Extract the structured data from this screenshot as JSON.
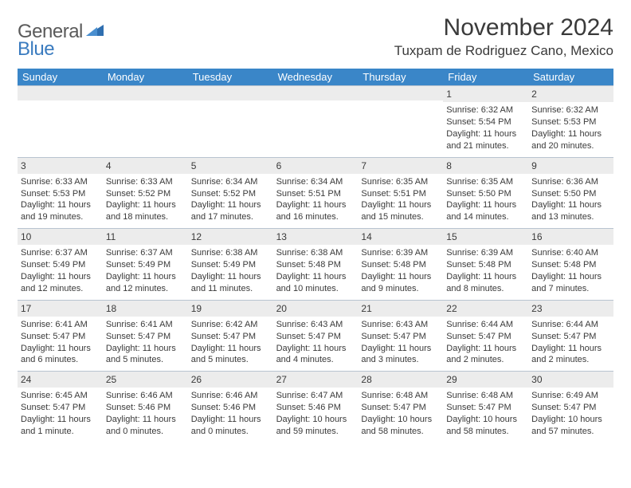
{
  "logo": {
    "text1": "General",
    "text2": "Blue"
  },
  "title": "November 2024",
  "location": "Tuxpam de Rodriguez Cano, Mexico",
  "colors": {
    "header_bar": "#3a86c8",
    "day_header_bg": "#ececec",
    "border": "#b8c4d0",
    "text": "#3a3a3a",
    "logo_gray": "#5a5a5a",
    "logo_blue": "#3a7bbf"
  },
  "weekdays": [
    "Sunday",
    "Monday",
    "Tuesday",
    "Wednesday",
    "Thursday",
    "Friday",
    "Saturday"
  ],
  "weeks": [
    [
      {
        "n": "",
        "sr": "",
        "ss": "",
        "dl": ""
      },
      {
        "n": "",
        "sr": "",
        "ss": "",
        "dl": ""
      },
      {
        "n": "",
        "sr": "",
        "ss": "",
        "dl": ""
      },
      {
        "n": "",
        "sr": "",
        "ss": "",
        "dl": ""
      },
      {
        "n": "",
        "sr": "",
        "ss": "",
        "dl": ""
      },
      {
        "n": "1",
        "sr": "Sunrise: 6:32 AM",
        "ss": "Sunset: 5:54 PM",
        "dl": "Daylight: 11 hours and 21 minutes."
      },
      {
        "n": "2",
        "sr": "Sunrise: 6:32 AM",
        "ss": "Sunset: 5:53 PM",
        "dl": "Daylight: 11 hours and 20 minutes."
      }
    ],
    [
      {
        "n": "3",
        "sr": "Sunrise: 6:33 AM",
        "ss": "Sunset: 5:53 PM",
        "dl": "Daylight: 11 hours and 19 minutes."
      },
      {
        "n": "4",
        "sr": "Sunrise: 6:33 AM",
        "ss": "Sunset: 5:52 PM",
        "dl": "Daylight: 11 hours and 18 minutes."
      },
      {
        "n": "5",
        "sr": "Sunrise: 6:34 AM",
        "ss": "Sunset: 5:52 PM",
        "dl": "Daylight: 11 hours and 17 minutes."
      },
      {
        "n": "6",
        "sr": "Sunrise: 6:34 AM",
        "ss": "Sunset: 5:51 PM",
        "dl": "Daylight: 11 hours and 16 minutes."
      },
      {
        "n": "7",
        "sr": "Sunrise: 6:35 AM",
        "ss": "Sunset: 5:51 PM",
        "dl": "Daylight: 11 hours and 15 minutes."
      },
      {
        "n": "8",
        "sr": "Sunrise: 6:35 AM",
        "ss": "Sunset: 5:50 PM",
        "dl": "Daylight: 11 hours and 14 minutes."
      },
      {
        "n": "9",
        "sr": "Sunrise: 6:36 AM",
        "ss": "Sunset: 5:50 PM",
        "dl": "Daylight: 11 hours and 13 minutes."
      }
    ],
    [
      {
        "n": "10",
        "sr": "Sunrise: 6:37 AM",
        "ss": "Sunset: 5:49 PM",
        "dl": "Daylight: 11 hours and 12 minutes."
      },
      {
        "n": "11",
        "sr": "Sunrise: 6:37 AM",
        "ss": "Sunset: 5:49 PM",
        "dl": "Daylight: 11 hours and 12 minutes."
      },
      {
        "n": "12",
        "sr": "Sunrise: 6:38 AM",
        "ss": "Sunset: 5:49 PM",
        "dl": "Daylight: 11 hours and 11 minutes."
      },
      {
        "n": "13",
        "sr": "Sunrise: 6:38 AM",
        "ss": "Sunset: 5:48 PM",
        "dl": "Daylight: 11 hours and 10 minutes."
      },
      {
        "n": "14",
        "sr": "Sunrise: 6:39 AM",
        "ss": "Sunset: 5:48 PM",
        "dl": "Daylight: 11 hours and 9 minutes."
      },
      {
        "n": "15",
        "sr": "Sunrise: 6:39 AM",
        "ss": "Sunset: 5:48 PM",
        "dl": "Daylight: 11 hours and 8 minutes."
      },
      {
        "n": "16",
        "sr": "Sunrise: 6:40 AM",
        "ss": "Sunset: 5:48 PM",
        "dl": "Daylight: 11 hours and 7 minutes."
      }
    ],
    [
      {
        "n": "17",
        "sr": "Sunrise: 6:41 AM",
        "ss": "Sunset: 5:47 PM",
        "dl": "Daylight: 11 hours and 6 minutes."
      },
      {
        "n": "18",
        "sr": "Sunrise: 6:41 AM",
        "ss": "Sunset: 5:47 PM",
        "dl": "Daylight: 11 hours and 5 minutes."
      },
      {
        "n": "19",
        "sr": "Sunrise: 6:42 AM",
        "ss": "Sunset: 5:47 PM",
        "dl": "Daylight: 11 hours and 5 minutes."
      },
      {
        "n": "20",
        "sr": "Sunrise: 6:43 AM",
        "ss": "Sunset: 5:47 PM",
        "dl": "Daylight: 11 hours and 4 minutes."
      },
      {
        "n": "21",
        "sr": "Sunrise: 6:43 AM",
        "ss": "Sunset: 5:47 PM",
        "dl": "Daylight: 11 hours and 3 minutes."
      },
      {
        "n": "22",
        "sr": "Sunrise: 6:44 AM",
        "ss": "Sunset: 5:47 PM",
        "dl": "Daylight: 11 hours and 2 minutes."
      },
      {
        "n": "23",
        "sr": "Sunrise: 6:44 AM",
        "ss": "Sunset: 5:47 PM",
        "dl": "Daylight: 11 hours and 2 minutes."
      }
    ],
    [
      {
        "n": "24",
        "sr": "Sunrise: 6:45 AM",
        "ss": "Sunset: 5:47 PM",
        "dl": "Daylight: 11 hours and 1 minute."
      },
      {
        "n": "25",
        "sr": "Sunrise: 6:46 AM",
        "ss": "Sunset: 5:46 PM",
        "dl": "Daylight: 11 hours and 0 minutes."
      },
      {
        "n": "26",
        "sr": "Sunrise: 6:46 AM",
        "ss": "Sunset: 5:46 PM",
        "dl": "Daylight: 11 hours and 0 minutes."
      },
      {
        "n": "27",
        "sr": "Sunrise: 6:47 AM",
        "ss": "Sunset: 5:46 PM",
        "dl": "Daylight: 10 hours and 59 minutes."
      },
      {
        "n": "28",
        "sr": "Sunrise: 6:48 AM",
        "ss": "Sunset: 5:47 PM",
        "dl": "Daylight: 10 hours and 58 minutes."
      },
      {
        "n": "29",
        "sr": "Sunrise: 6:48 AM",
        "ss": "Sunset: 5:47 PM",
        "dl": "Daylight: 10 hours and 58 minutes."
      },
      {
        "n": "30",
        "sr": "Sunrise: 6:49 AM",
        "ss": "Sunset: 5:47 PM",
        "dl": "Daylight: 10 hours and 57 minutes."
      }
    ]
  ]
}
